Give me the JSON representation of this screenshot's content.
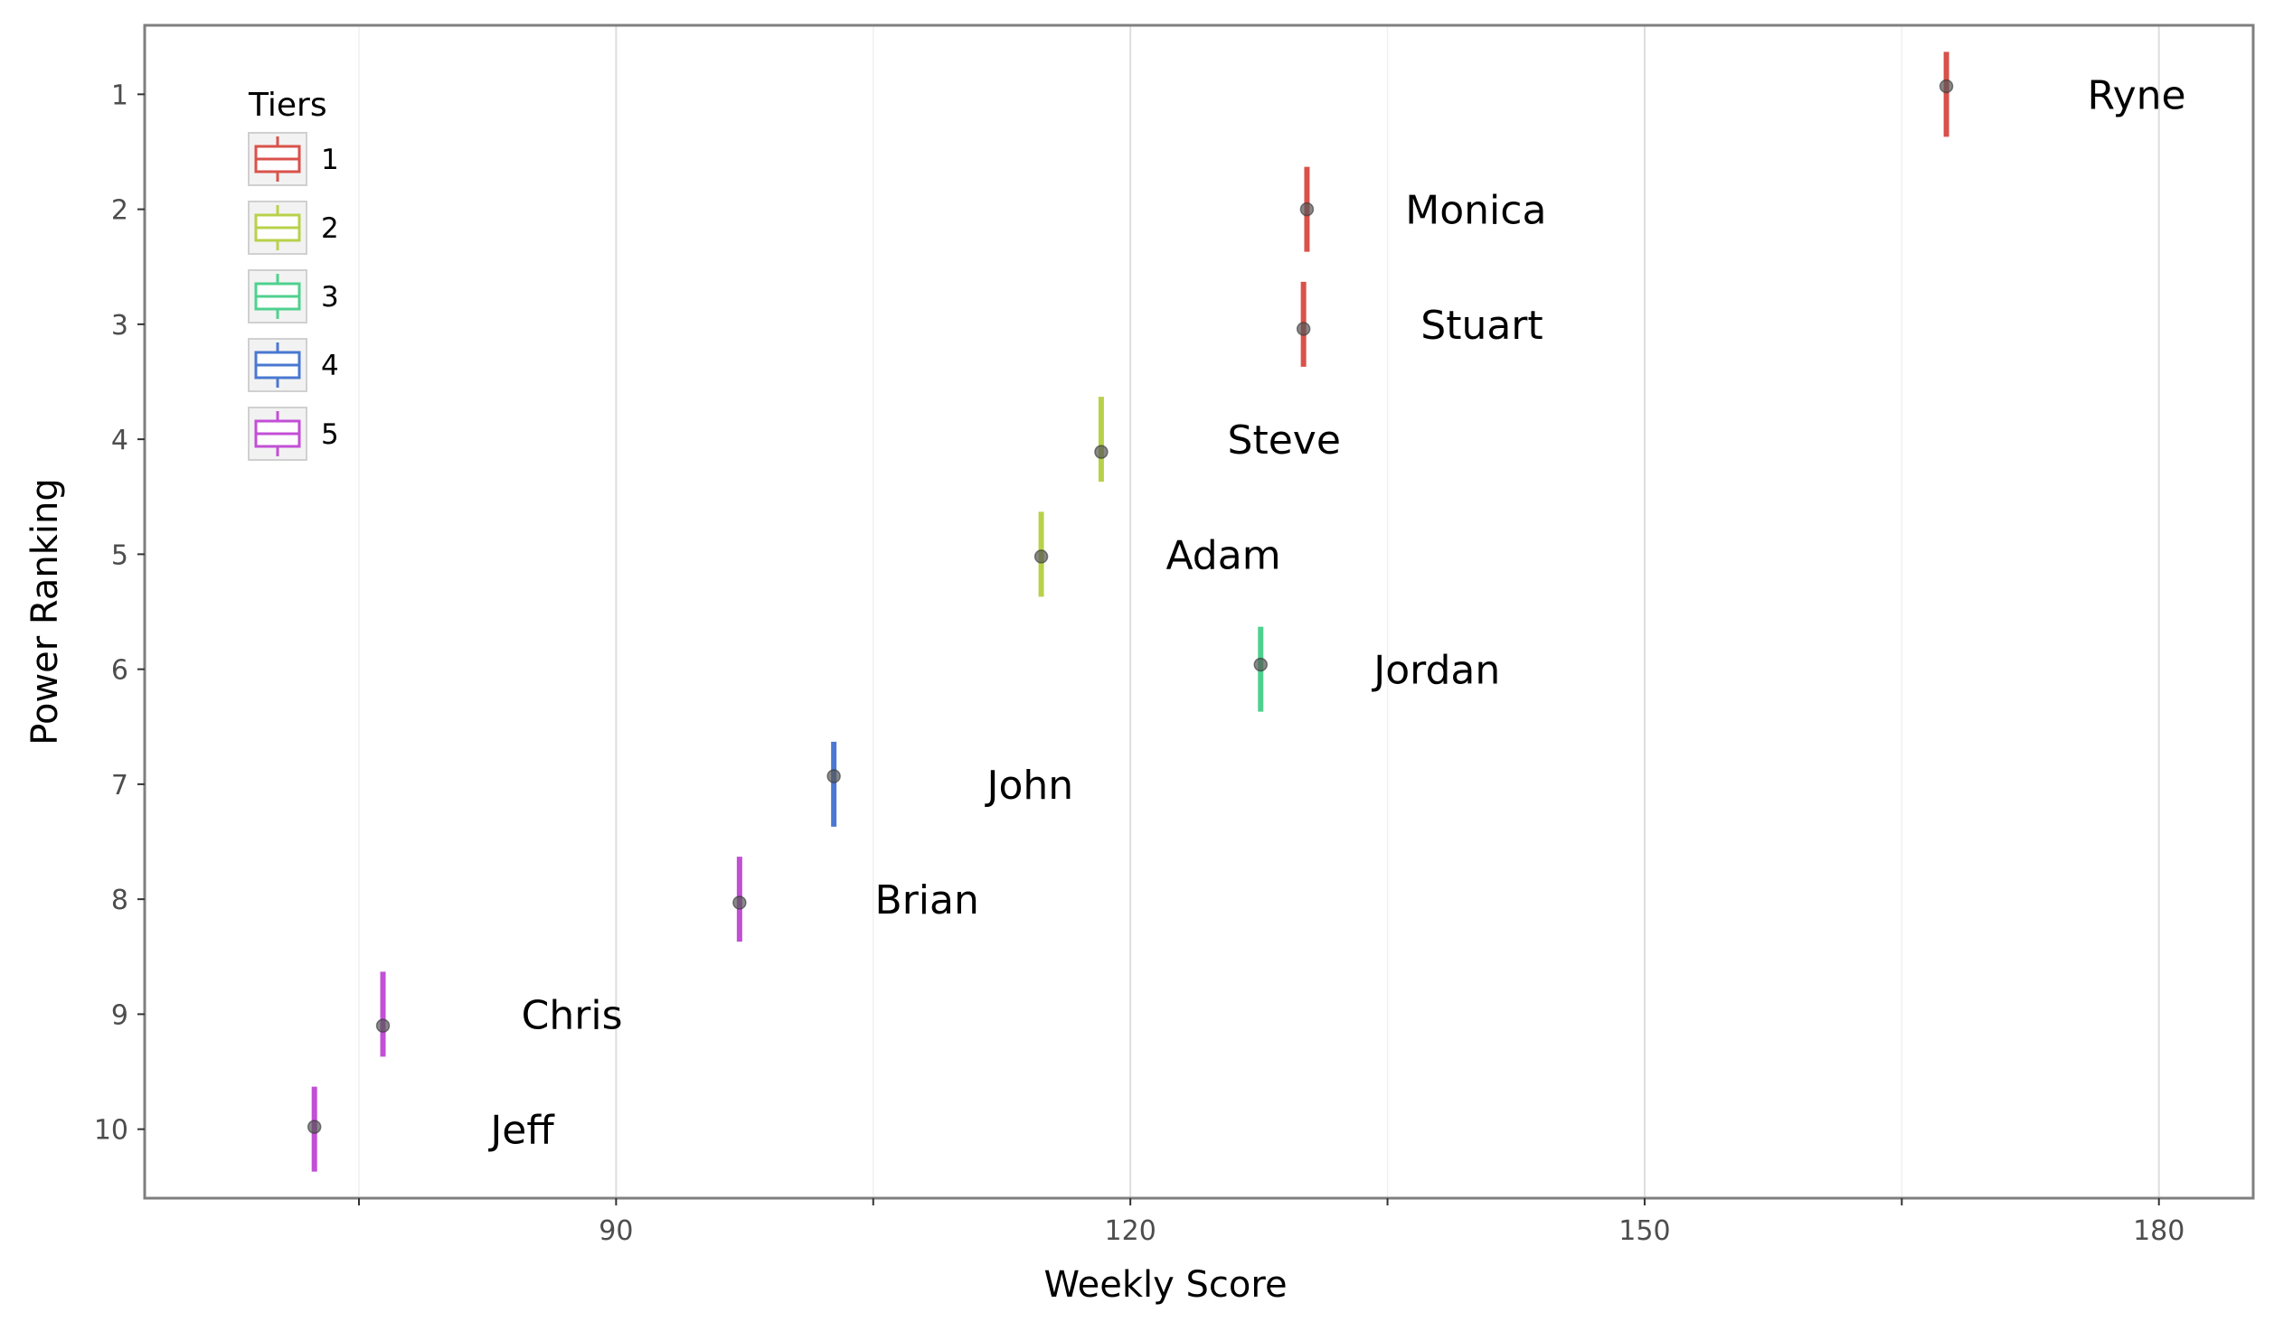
{
  "chart_data": {
    "type": "scatter",
    "xlabel": "Weekly Score",
    "ylabel": "Power Ranking",
    "xlim": [
      62.5,
      185.5
    ],
    "ylim": [
      0.4,
      10.6
    ],
    "y_reversed": true,
    "x_ticks": [
      90,
      120,
      150,
      180
    ],
    "x_minor_ticks": [
      75,
      105,
      135,
      165
    ],
    "y_ticks": [
      1,
      2,
      3,
      4,
      5,
      6,
      7,
      8,
      9,
      10
    ],
    "grid": true,
    "legend": {
      "title": "Tiers",
      "placement": "top-left",
      "entries": [
        {
          "label": "1",
          "color": "#d9524a"
        },
        {
          "label": "2",
          "color": "#b8d14a"
        },
        {
          "label": "3",
          "color": "#4fd18e"
        },
        {
          "label": "4",
          "color": "#4a78d1"
        },
        {
          "label": "5",
          "color": "#c24fd6"
        }
      ]
    },
    "points": [
      {
        "name": "Ryne",
        "x": 167.6,
        "y": 0.93,
        "rank": 1,
        "tier": "1"
      },
      {
        "name": "Monica",
        "x": 130.3,
        "y": 2.0,
        "rank": 2,
        "tier": "1"
      },
      {
        "name": "Stuart",
        "x": 130.1,
        "y": 3.04,
        "rank": 3,
        "tier": "1"
      },
      {
        "name": "Steve",
        "x": 118.3,
        "y": 4.11,
        "rank": 4,
        "tier": "2"
      },
      {
        "name": "Adam",
        "x": 114.8,
        "y": 5.02,
        "rank": 5,
        "tier": "2"
      },
      {
        "name": "Jordan",
        "x": 127.6,
        "y": 5.96,
        "rank": 6,
        "tier": "3"
      },
      {
        "name": "John",
        "x": 102.7,
        "y": 6.93,
        "rank": 7,
        "tier": "4"
      },
      {
        "name": "Brian",
        "x": 97.2,
        "y": 8.03,
        "rank": 8,
        "tier": "5"
      },
      {
        "name": "Chris",
        "x": 76.4,
        "y": 9.1,
        "rank": 9,
        "tier": "5"
      },
      {
        "name": "Jeff",
        "x": 72.4,
        "y": 9.98,
        "rank": 10,
        "tier": "5"
      }
    ]
  }
}
